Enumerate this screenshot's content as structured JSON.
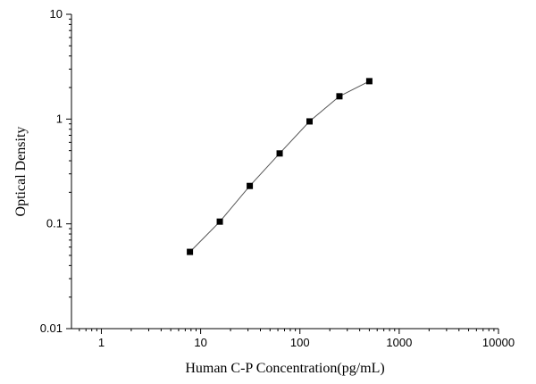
{
  "chart_data": {
    "type": "line",
    "title": "",
    "xlabel": "Human C-P Concentration(pg/mL)",
    "ylabel": "Optical Density",
    "x_scale": "log",
    "y_scale": "log",
    "xlim": [
      0.5,
      10000
    ],
    "ylim": [
      0.01,
      10
    ],
    "x_ticks": [
      1,
      10,
      100,
      1000,
      10000
    ],
    "x_tick_labels": [
      "1",
      "10",
      "100",
      "1000",
      "10000"
    ],
    "y_ticks": [
      0.01,
      0.1,
      1,
      10
    ],
    "y_tick_labels": [
      "0.01",
      "0.1",
      "1",
      "10"
    ],
    "grid": false,
    "marker": "square",
    "series": [
      {
        "x": [
          7.8,
          15.6,
          31.25,
          62.5,
          125,
          250,
          500
        ],
        "y": [
          0.054,
          0.105,
          0.23,
          0.47,
          0.95,
          1.65,
          2.3
        ]
      }
    ]
  }
}
